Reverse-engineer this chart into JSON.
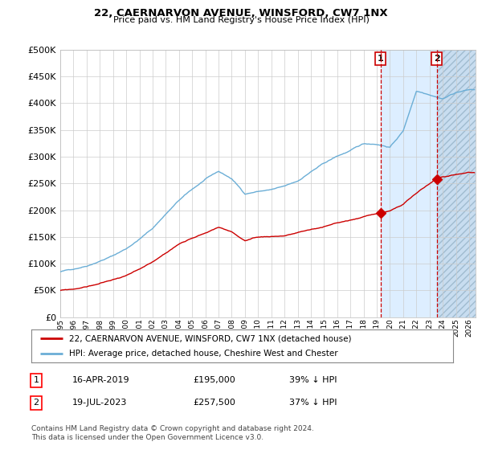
{
  "title": "22, CAERNARVON AVENUE, WINSFORD, CW7 1NX",
  "subtitle": "Price paid vs. HM Land Registry's House Price Index (HPI)",
  "ylim": [
    0,
    500000
  ],
  "yticks": [
    0,
    50000,
    100000,
    150000,
    200000,
    250000,
    300000,
    350000,
    400000,
    450000,
    500000
  ],
  "xlim_start": 1995.0,
  "xlim_end": 2026.5,
  "xticks": [
    1995,
    1996,
    1997,
    1998,
    1999,
    2000,
    2001,
    2002,
    2003,
    2004,
    2005,
    2006,
    2007,
    2008,
    2009,
    2010,
    2011,
    2012,
    2013,
    2014,
    2015,
    2016,
    2017,
    2018,
    2019,
    2020,
    2021,
    2022,
    2023,
    2024,
    2025,
    2026
  ],
  "hpi_color": "#6baed6",
  "price_color": "#cc0000",
  "marker1_date": 2019.29,
  "marker1_price": 195000,
  "marker1_label": "1",
  "marker2_date": 2023.54,
  "marker2_price": 257500,
  "marker2_label": "2",
  "vline_color": "#cc0000",
  "shade_color": "#ddeeff",
  "hatch_color": "#c8ddf0",
  "legend_line1": "22, CAERNARVON AVENUE, WINSFORD, CW7 1NX (detached house)",
  "legend_line2": "HPI: Average price, detached house, Cheshire West and Chester",
  "table_row1": [
    "1",
    "16-APR-2019",
    "£195,000",
    "39% ↓ HPI"
  ],
  "table_row2": [
    "2",
    "19-JUL-2023",
    "£257,500",
    "37% ↓ HPI"
  ],
  "footnote": "Contains HM Land Registry data © Crown copyright and database right 2024.\nThis data is licensed under the Open Government Licence v3.0.",
  "background_color": "#ffffff",
  "grid_color": "#cccccc",
  "hpi_keypoints_x": [
    1995,
    1996,
    1997,
    1998,
    1999,
    2000,
    2001,
    2002,
    2003,
    2004,
    2005,
    2006,
    2007,
    2008,
    2009,
    2010,
    2011,
    2012,
    2013,
    2014,
    2015,
    2016,
    2017,
    2018,
    2019,
    2020,
    2021,
    2022,
    2023,
    2024,
    2025,
    2026
  ],
  "hpi_keypoints_y": [
    85000,
    90000,
    97000,
    107000,
    117000,
    130000,
    148000,
    168000,
    195000,
    220000,
    240000,
    258000,
    272000,
    258000,
    230000,
    235000,
    238000,
    243000,
    252000,
    270000,
    285000,
    298000,
    308000,
    320000,
    320000,
    315000,
    345000,
    420000,
    415000,
    408000,
    420000,
    425000
  ],
  "price_keypoints_x": [
    1995,
    1996,
    1997,
    1998,
    1999,
    2000,
    2001,
    2002,
    2003,
    2004,
    2005,
    2006,
    2007,
    2008,
    2009,
    2010,
    2011,
    2012,
    2013,
    2014,
    2015,
    2016,
    2017,
    2018,
    2019.29,
    2020,
    2021,
    2022,
    2023.54,
    2024,
    2025,
    2026
  ],
  "price_keypoints_y": [
    50000,
    52000,
    57000,
    63000,
    70000,
    78000,
    88000,
    100000,
    118000,
    135000,
    148000,
    158000,
    168000,
    160000,
    143000,
    148000,
    150000,
    152000,
    157000,
    163000,
    168000,
    175000,
    180000,
    187000,
    195000,
    198000,
    210000,
    230000,
    257500,
    260000,
    265000,
    270000
  ]
}
